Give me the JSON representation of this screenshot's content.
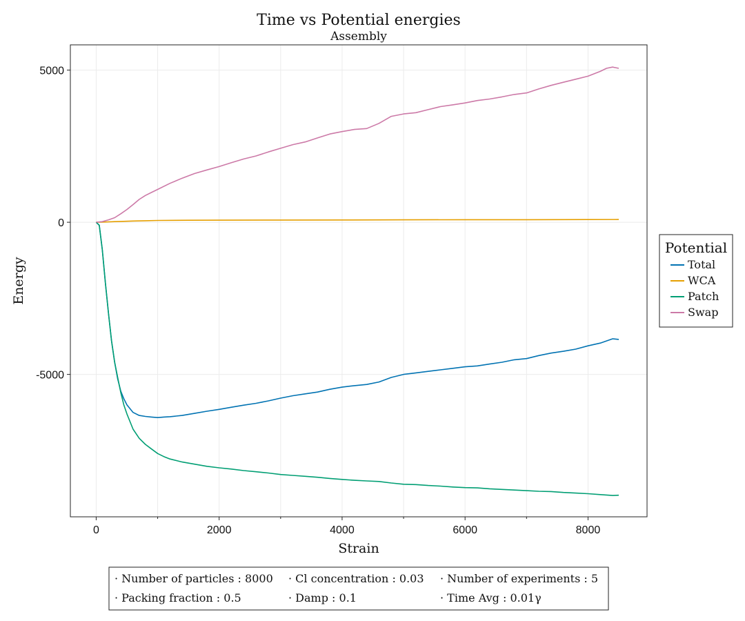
{
  "chart_data": {
    "type": "line",
    "title": "Time vs Potential energies",
    "subtitle": "Assembly",
    "xlabel": "Strain",
    "ylabel": "Energy",
    "xlim": [
      -420,
      8960
    ],
    "ylim": [
      -9680,
      5830
    ],
    "xticks": [
      0,
      2000,
      4000,
      6000,
      8000
    ],
    "xtick_labels": [
      "0",
      "2000",
      "4000",
      "6000",
      "8000"
    ],
    "yticks": [
      5000,
      0,
      -5000
    ],
    "ytick_labels": [
      "5000",
      "0",
      "-5000"
    ],
    "grid": true,
    "legend": {
      "title": "Potential",
      "position": "right",
      "entries": [
        "Total",
        "WCA",
        "Patch",
        "Swap"
      ]
    },
    "series": [
      {
        "name": "Total",
        "color": "#0072b2",
        "x": [
          0,
          50,
          100,
          150,
          200,
          250,
          300,
          350,
          400,
          450,
          500,
          600,
          700,
          800,
          900,
          1000,
          1100,
          1200,
          1400,
          1600,
          1800,
          2000,
          2200,
          2400,
          2600,
          2800,
          3000,
          3200,
          3400,
          3600,
          3800,
          4000,
          4200,
          4400,
          4600,
          4800,
          5000,
          5200,
          5400,
          5600,
          5800,
          6000,
          6200,
          6400,
          6600,
          6800,
          7000,
          7200,
          7400,
          7600,
          7800,
          8000,
          8200,
          8400,
          8500
        ],
        "y": [
          0,
          -100,
          -900,
          -2000,
          -3000,
          -3900,
          -4600,
          -5150,
          -5550,
          -5800,
          -6000,
          -6250,
          -6350,
          -6380,
          -6400,
          -6420,
          -6400,
          -6390,
          -6350,
          -6280,
          -6210,
          -6150,
          -6080,
          -6010,
          -5950,
          -5870,
          -5780,
          -5700,
          -5640,
          -5580,
          -5490,
          -5420,
          -5370,
          -5330,
          -5250,
          -5100,
          -5000,
          -4950,
          -4900,
          -4850,
          -4800,
          -4750,
          -4720,
          -4660,
          -4600,
          -4520,
          -4480,
          -4380,
          -4300,
          -4240,
          -4170,
          -4060,
          -3970,
          -3830,
          -3850
        ]
      },
      {
        "name": "WCA",
        "color": "#e69f00",
        "x": [
          0,
          100,
          200,
          300,
          400,
          600,
          800,
          1000,
          1500,
          2000,
          3000,
          4000,
          5000,
          6000,
          7000,
          8000,
          8500
        ],
        "y": [
          0,
          5,
          12,
          20,
          28,
          40,
          50,
          58,
          65,
          68,
          72,
          75,
          80,
          83,
          85,
          88,
          90
        ]
      },
      {
        "name": "Patch",
        "color": "#009e73",
        "x": [
          0,
          50,
          100,
          150,
          200,
          250,
          300,
          350,
          400,
          450,
          500,
          600,
          700,
          800,
          900,
          1000,
          1100,
          1200,
          1400,
          1600,
          1800,
          2000,
          2200,
          2400,
          2600,
          2800,
          3000,
          3200,
          3400,
          3600,
          3800,
          4000,
          4200,
          4400,
          4600,
          4800,
          5000,
          5200,
          5400,
          5600,
          5800,
          6000,
          6200,
          6400,
          6600,
          6800,
          7000,
          7200,
          7400,
          7600,
          7800,
          8000,
          8200,
          8400,
          8500
        ],
        "y": [
          0,
          -100,
          -900,
          -2000,
          -3000,
          -3900,
          -4600,
          -5100,
          -5600,
          -6000,
          -6300,
          -6800,
          -7100,
          -7300,
          -7450,
          -7600,
          -7700,
          -7780,
          -7880,
          -7950,
          -8020,
          -8070,
          -8110,
          -8160,
          -8200,
          -8240,
          -8290,
          -8320,
          -8350,
          -8380,
          -8420,
          -8450,
          -8480,
          -8500,
          -8520,
          -8570,
          -8610,
          -8620,
          -8650,
          -8670,
          -8700,
          -8720,
          -8730,
          -8760,
          -8780,
          -8800,
          -8820,
          -8840,
          -8850,
          -8880,
          -8900,
          -8920,
          -8950,
          -8980,
          -8970
        ]
      },
      {
        "name": "Swap",
        "color": "#cc79a7",
        "x": [
          0,
          100,
          200,
          300,
          400,
          500,
          600,
          700,
          800,
          900,
          1000,
          1200,
          1400,
          1600,
          1800,
          2000,
          2200,
          2400,
          2600,
          2800,
          3000,
          3200,
          3400,
          3600,
          3800,
          4000,
          4200,
          4400,
          4600,
          4800,
          5000,
          5200,
          5400,
          5600,
          5800,
          6000,
          6200,
          6400,
          6600,
          6800,
          7000,
          7200,
          7400,
          7600,
          7800,
          8000,
          8200,
          8300,
          8400,
          8500
        ],
        "y": [
          0,
          20,
          80,
          150,
          280,
          420,
          580,
          750,
          880,
          980,
          1080,
          1280,
          1450,
          1600,
          1720,
          1830,
          1960,
          2080,
          2180,
          2310,
          2430,
          2550,
          2640,
          2770,
          2900,
          2980,
          3050,
          3080,
          3250,
          3480,
          3560,
          3600,
          3700,
          3800,
          3860,
          3920,
          4000,
          4050,
          4120,
          4200,
          4250,
          4380,
          4500,
          4600,
          4700,
          4800,
          4960,
          5060,
          5100,
          5060
        ]
      }
    ]
  },
  "info_box": {
    "rows": [
      [
        "Number of particles : 8000",
        "Cl concentration : 0.03",
        "Number of experiments : 5"
      ],
      [
        "Packing fraction : 0.5",
        "Damp : 0.1",
        "Time Avg : 0.01γ"
      ]
    ]
  }
}
